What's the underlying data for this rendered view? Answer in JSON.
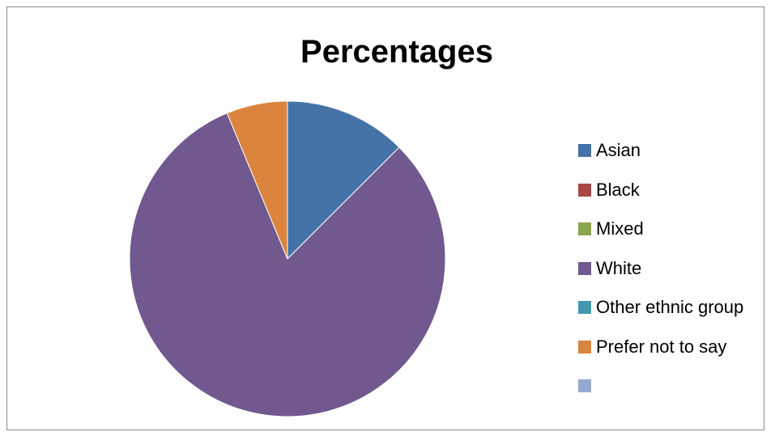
{
  "chart_data": {
    "type": "pie",
    "title": "Percentages",
    "legend_position": "right",
    "categories": [
      "Asian",
      "Black",
      "Mixed",
      "White",
      "Other ethnic group",
      "Prefer not to say",
      ""
    ],
    "values": [
      12.5,
      0,
      0,
      81.25,
      0,
      6.25,
      0
    ],
    "colors": [
      "#4572A7",
      "#AA4643",
      "#89A54E",
      "#71588F",
      "#4198AF",
      "#DB843D",
      "#93A9CF"
    ]
  }
}
